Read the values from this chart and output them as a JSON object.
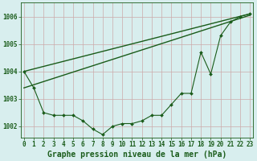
{
  "background_color": "#d8eeee",
  "grid_color": "#ccaaaa",
  "line_color": "#1a5c1a",
  "xlabel": "Graphe pression niveau de la mer (hPa)",
  "x_ticks": [
    0,
    1,
    2,
    3,
    4,
    5,
    6,
    7,
    8,
    9,
    10,
    11,
    12,
    13,
    14,
    15,
    16,
    17,
    18,
    19,
    20,
    21,
    22,
    23
  ],
  "ylim": [
    1001.6,
    1006.5
  ],
  "xlim": [
    -0.3,
    23.3
  ],
  "yticks": [
    1002,
    1003,
    1004,
    1005,
    1006
  ],
  "series1_x": [
    0,
    1,
    2,
    3,
    4,
    5,
    6,
    7,
    8,
    9,
    10,
    11,
    12,
    13,
    14,
    15,
    16,
    17,
    18,
    19,
    20,
    21,
    22,
    23
  ],
  "series1_y": [
    1004.0,
    1003.4,
    1002.5,
    1002.4,
    1002.4,
    1002.4,
    1002.2,
    1001.9,
    1001.7,
    1002.0,
    1002.1,
    1002.1,
    1002.2,
    1002.4,
    1002.4,
    1002.8,
    1003.2,
    1003.2,
    1004.7,
    1003.9,
    1005.3,
    1005.8,
    1006.0,
    1006.1
  ],
  "series2_x": [
    0,
    23
  ],
  "series2_y": [
    1004.0,
    1006.1
  ],
  "series3_x": [
    0,
    23
  ],
  "series3_y": [
    1003.4,
    1006.05
  ],
  "tick_fontsize": 5.5,
  "label_fontsize": 7.0
}
